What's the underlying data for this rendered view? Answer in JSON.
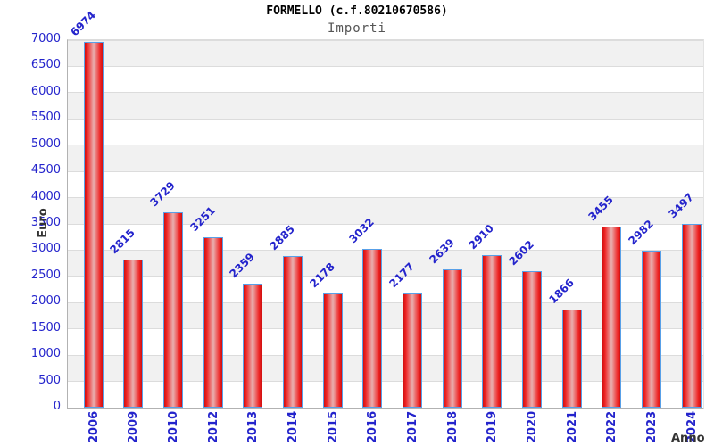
{
  "header": {
    "title": "FORMELLO (c.f.80210670586)",
    "subtitle": "Importi"
  },
  "axes": {
    "y_label": "Euro",
    "x_label": "Anno"
  },
  "chart_data": {
    "type": "bar",
    "title": "FORMELLO (c.f.80210670586)",
    "subtitle": "Importi",
    "xlabel": "Anno",
    "ylabel": "Euro",
    "categories": [
      "2006",
      "2009",
      "2010",
      "2012",
      "2013",
      "2014",
      "2015",
      "2016",
      "2017",
      "2018",
      "2019",
      "2020",
      "2021",
      "2022",
      "2023",
      "2024"
    ],
    "values": [
      6974,
      2815,
      3729,
      3251,
      2359,
      2885,
      2178,
      3032,
      2177,
      2639,
      2910,
      2602,
      1866,
      3455,
      2982,
      3497
    ],
    "ylim": [
      0,
      7000
    ],
    "yticks": [
      0,
      500,
      1000,
      1500,
      2000,
      2500,
      3000,
      3500,
      4000,
      4500,
      5000,
      5500,
      6000,
      6500,
      7000
    ],
    "grid": "horizontal-bands-alternating",
    "legend": "none",
    "colors": {
      "bar_fill_edge": "#cf1111",
      "bar_fill_mid": "#e9a9a9",
      "bar_border": "#58a0e8",
      "value_label": "#2424cc",
      "tick_label": "#2424cc",
      "band_gray": "#f1f1f1",
      "band_white": "#ffffff",
      "gridline": "#dcdcdc",
      "axis_title": "#333333"
    }
  }
}
